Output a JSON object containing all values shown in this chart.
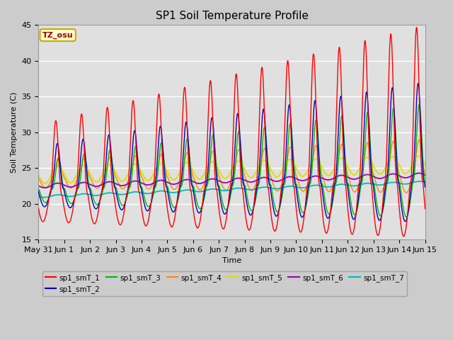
{
  "title": "SP1 Soil Temperature Profile",
  "xlabel": "Time",
  "ylabel": "Soil Temperature (C)",
  "ylim": [
    15,
    45
  ],
  "series_colors": [
    "#ff0000",
    "#0000bb",
    "#00bb00",
    "#ff8800",
    "#dddd00",
    "#9900bb",
    "#00bbbb"
  ],
  "series_labels": [
    "sp1_smT_1",
    "sp1_smT_2",
    "sp1_smT_3",
    "sp1_smT_4",
    "sp1_smT_5",
    "sp1_smT_6",
    "sp1_smT_7"
  ],
  "tz_label": "TZ_osu",
  "tz_color": "#990000",
  "tick_labels": [
    "May 31",
    "Jun 1",
    "Jun 2",
    "Jun 3",
    "Jun 4",
    "Jun 5",
    "Jun 6",
    "Jun 7",
    "Jun 8",
    "Jun 9",
    "Jun 10",
    "Jun 11",
    "Jun 12",
    "Jun 13",
    "Jun 14",
    "Jun 15"
  ],
  "tick_positions": [
    0,
    1,
    2,
    3,
    4,
    5,
    6,
    7,
    8,
    9,
    10,
    11,
    12,
    13,
    14,
    15
  ]
}
